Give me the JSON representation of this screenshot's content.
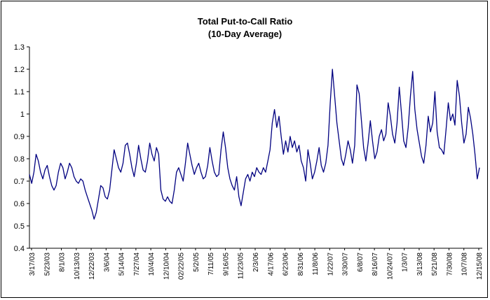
{
  "chart_data": {
    "type": "line",
    "title": "Total Put-to-Call Ratio",
    "subtitle": "(10-Day Average)",
    "xlabel": "",
    "ylabel": "",
    "ylim": [
      0.4,
      1.3
    ],
    "yticks": [
      0.4,
      0.5,
      0.6,
      0.7,
      0.8,
      0.9,
      1,
      1.1,
      1.2,
      1.3
    ],
    "xtick_labels": [
      "3/17/03",
      "5/23/03",
      "8/1/03",
      "10/13/03",
      "12/22/03",
      "3/6/04",
      "5/14/04",
      "7/27/04",
      "10/4/04",
      "12/10/04",
      "02/22/05",
      "5/2/05",
      "7/11/05",
      "9/16/05",
      "11/23/05",
      "2/3/06",
      "4/17/06",
      "6/23/06",
      "8/31/06",
      "11/8/06",
      "1/22/07",
      "3/30/07",
      "6/8/07",
      "8/16/07",
      "10/24/07",
      "1/3/07",
      "3/13/08",
      "5/21/08",
      "7/30/08",
      "10/7/08",
      "12/15/08"
    ],
    "grid": false,
    "legend": "none",
    "line_color": "#000080",
    "series": [
      {
        "values": [
          0.73,
          0.69,
          0.74,
          0.82,
          0.79,
          0.74,
          0.71,
          0.75,
          0.77,
          0.72,
          0.68,
          0.66,
          0.68,
          0.74,
          0.78,
          0.76,
          0.71,
          0.74,
          0.78,
          0.76,
          0.72,
          0.7,
          0.69,
          0.71,
          0.7,
          0.66,
          0.63,
          0.6,
          0.57,
          0.53,
          0.56,
          0.62,
          0.68,
          0.67,
          0.63,
          0.62,
          0.66,
          0.75,
          0.84,
          0.8,
          0.76,
          0.74,
          0.78,
          0.86,
          0.87,
          0.82,
          0.76,
          0.72,
          0.78,
          0.86,
          0.8,
          0.75,
          0.74,
          0.79,
          0.87,
          0.82,
          0.79,
          0.85,
          0.82,
          0.66,
          0.62,
          0.61,
          0.63,
          0.61,
          0.6,
          0.66,
          0.74,
          0.76,
          0.73,
          0.7,
          0.78,
          0.87,
          0.82,
          0.77,
          0.73,
          0.76,
          0.78,
          0.74,
          0.71,
          0.72,
          0.77,
          0.85,
          0.79,
          0.74,
          0.72,
          0.73,
          0.84,
          0.92,
          0.85,
          0.76,
          0.71,
          0.68,
          0.66,
          0.72,
          0.63,
          0.59,
          0.65,
          0.71,
          0.73,
          0.7,
          0.74,
          0.72,
          0.76,
          0.74,
          0.73,
          0.76,
          0.74,
          0.79,
          0.84,
          0.96,
          1.02,
          0.94,
          0.99,
          0.9,
          0.82,
          0.88,
          0.83,
          0.9,
          0.85,
          0.88,
          0.83,
          0.86,
          0.79,
          0.76,
          0.7,
          0.84,
          0.78,
          0.71,
          0.74,
          0.79,
          0.85,
          0.77,
          0.74,
          0.78,
          0.86,
          1.05,
          1.2,
          1.08,
          0.96,
          0.88,
          0.8,
          0.77,
          0.82,
          0.88,
          0.84,
          0.78,
          0.86,
          1.13,
          1.09,
          0.97,
          0.85,
          0.79,
          0.87,
          0.97,
          0.88,
          0.8,
          0.83,
          0.9,
          0.93,
          0.88,
          0.91,
          1.05,
          0.99,
          0.91,
          0.87,
          0.96,
          1.12,
          1.0,
          0.88,
          0.85,
          0.94,
          1.08,
          1.19,
          1.02,
          0.93,
          0.87,
          0.81,
          0.78,
          0.86,
          0.99,
          0.92,
          0.96,
          1.1,
          0.92,
          0.85,
          0.84,
          0.82,
          0.93,
          1.05,
          0.97,
          1.0,
          0.95,
          1.15,
          1.08,
          0.96,
          0.87,
          0.91,
          1.03,
          0.98,
          0.91,
          0.82,
          0.71,
          0.76
        ]
      }
    ]
  }
}
